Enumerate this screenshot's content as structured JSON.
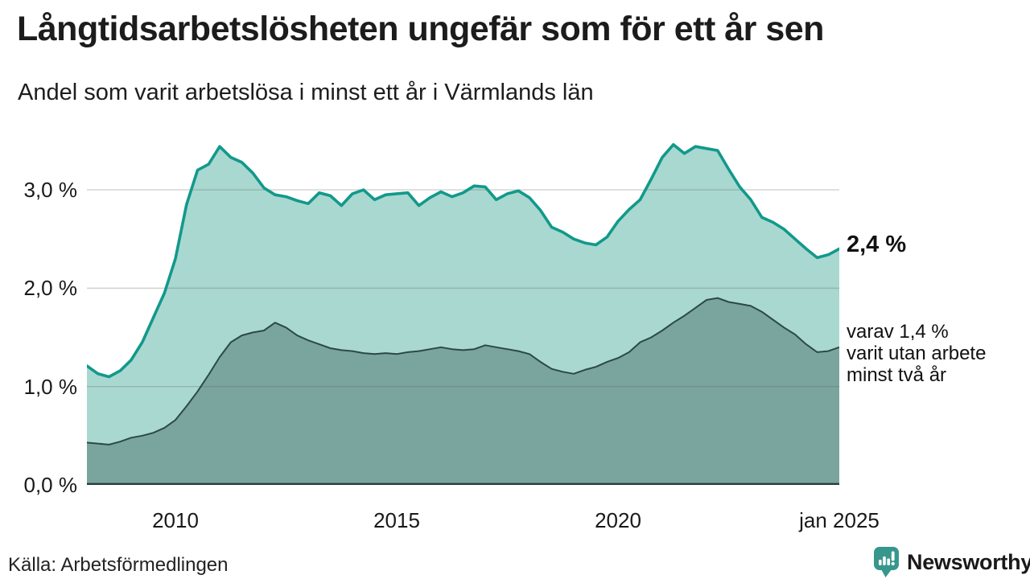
{
  "chart_data": {
    "type": "area",
    "title": "Långtidsarbetslösheten ungefär som för ett år sen",
    "subtitle": "Andel som varit arbetslösa i minst ett år i Värmlands län",
    "x_unit": "decimal_year",
    "x": [
      2008.0,
      2008.25,
      2008.5,
      2008.75,
      2009.0,
      2009.25,
      2009.5,
      2009.75,
      2010.0,
      2010.25,
      2010.5,
      2010.75,
      2011.0,
      2011.25,
      2011.5,
      2011.75,
      2012.0,
      2012.25,
      2012.5,
      2012.75,
      2013.0,
      2013.25,
      2013.5,
      2013.75,
      2014.0,
      2014.25,
      2014.5,
      2014.75,
      2015.0,
      2015.25,
      2015.5,
      2015.75,
      2016.0,
      2016.25,
      2016.5,
      2016.75,
      2017.0,
      2017.25,
      2017.5,
      2017.75,
      2018.0,
      2018.25,
      2018.5,
      2018.75,
      2019.0,
      2019.25,
      2019.5,
      2019.75,
      2020.0,
      2020.25,
      2020.5,
      2020.75,
      2021.0,
      2021.25,
      2021.5,
      2021.75,
      2022.0,
      2022.25,
      2022.5,
      2022.75,
      2023.0,
      2023.25,
      2023.5,
      2023.75,
      2024.0,
      2024.25,
      2024.5,
      2024.75,
      2025.0
    ],
    "series": [
      {
        "name": "Andel arbetslösa minst ett år",
        "line_color": "#12998b",
        "fill_color": "#a9d8d0",
        "values": [
          1.21,
          1.13,
          1.1,
          1.16,
          1.27,
          1.45,
          1.7,
          1.95,
          2.3,
          2.85,
          3.2,
          3.26,
          3.44,
          3.33,
          3.28,
          3.17,
          3.02,
          2.95,
          2.93,
          2.89,
          2.86,
          2.97,
          2.94,
          2.84,
          2.96,
          3.0,
          2.9,
          2.95,
          2.96,
          2.97,
          2.84,
          2.92,
          2.98,
          2.93,
          2.97,
          3.04,
          3.03,
          2.9,
          2.96,
          2.99,
          2.92,
          2.79,
          2.62,
          2.57,
          2.5,
          2.46,
          2.44,
          2.52,
          2.68,
          2.8,
          2.9,
          3.11,
          3.33,
          3.46,
          3.37,
          3.44,
          3.42,
          3.4,
          3.21,
          3.03,
          2.9,
          2.72,
          2.67,
          2.6,
          2.5,
          2.4,
          2.31,
          2.34,
          2.4
        ]
      },
      {
        "name": "varav utan arbete minst två år",
        "line_color": "#2b4a44",
        "fill_color": "#7aa59e",
        "values": [
          0.43,
          0.42,
          0.41,
          0.44,
          0.48,
          0.5,
          0.53,
          0.58,
          0.66,
          0.8,
          0.95,
          1.12,
          1.3,
          1.45,
          1.52,
          1.55,
          1.57,
          1.65,
          1.6,
          1.52,
          1.47,
          1.43,
          1.39,
          1.37,
          1.36,
          1.34,
          1.33,
          1.34,
          1.33,
          1.35,
          1.36,
          1.38,
          1.4,
          1.38,
          1.37,
          1.38,
          1.42,
          1.4,
          1.38,
          1.36,
          1.33,
          1.25,
          1.18,
          1.15,
          1.13,
          1.17,
          1.2,
          1.25,
          1.29,
          1.35,
          1.45,
          1.5,
          1.57,
          1.65,
          1.72,
          1.8,
          1.88,
          1.9,
          1.86,
          1.84,
          1.82,
          1.76,
          1.68,
          1.6,
          1.53,
          1.43,
          1.35,
          1.36,
          1.4
        ]
      }
    ],
    "ylim": [
      0,
      3.54
    ],
    "yticks": [
      {
        "value": 0,
        "label": "0,0 %"
      },
      {
        "value": 1,
        "label": "1,0 %"
      },
      {
        "value": 2,
        "label": "2,0 %"
      },
      {
        "value": 3,
        "label": "3,0 %"
      }
    ],
    "xticks": [
      {
        "value": 2010,
        "label": "2010"
      },
      {
        "value": 2015,
        "label": "2015"
      },
      {
        "value": 2020,
        "label": "2020"
      },
      {
        "value": 2025,
        "label": "jan 2025"
      }
    ],
    "grid": "horizontal",
    "grid_color": "#d9d9d9",
    "baseline_color": "#24403a",
    "legend": "none",
    "annotations": {
      "latest_total": {
        "value": 2.4,
        "label": "2,4 %"
      },
      "latest_two_years": {
        "value": 1.4,
        "label": "varav 1,4 %\nvarit utan arbete\nminst två år"
      }
    }
  },
  "source": {
    "label": "Källa: Arbetsförmedlingen"
  },
  "branding": {
    "name": "Newsworthy",
    "color": "#38978c",
    "icon": "bar-chart-speech-bubble-icon"
  }
}
